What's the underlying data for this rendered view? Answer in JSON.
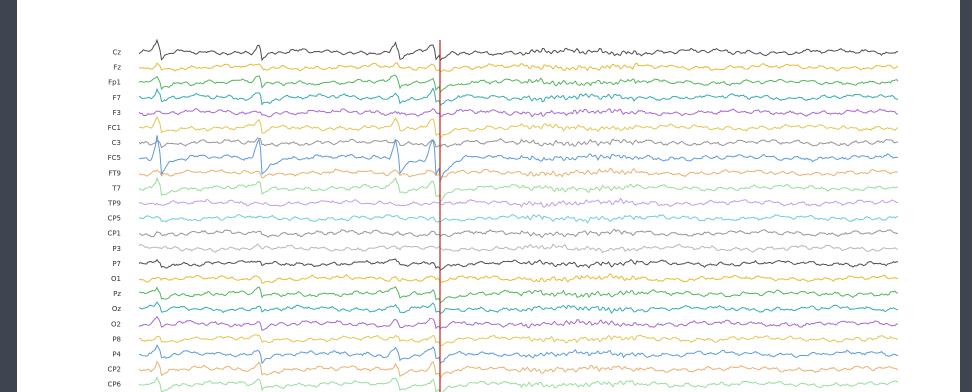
{
  "chart_data": {
    "type": "line",
    "title": "",
    "xlabel": "",
    "ylabel": "",
    "legend": "none",
    "grid": false,
    "event_marker": {
      "color": "#c0392b"
    },
    "series": [
      {
        "name": "Cz",
        "color": "#3a3a3a",
        "spikes": 1.0
      },
      {
        "name": "Fz",
        "color": "#e6b31e",
        "spikes": 0.3
      },
      {
        "name": "Fp1",
        "color": "#3fae4a",
        "spikes": 0.8
      },
      {
        "name": "F7",
        "color": "#1fa3a8",
        "spikes": 0.9
      },
      {
        "name": "F3",
        "color": "#9b59d0",
        "spikes": 0.3
      },
      {
        "name": "FC1",
        "color": "#e0c040",
        "spikes": 0.9
      },
      {
        "name": "C3",
        "color": "#8a8a8a",
        "spikes": 0.4
      },
      {
        "name": "FC5",
        "color": "#4a90d9",
        "spikes": 2.4
      },
      {
        "name": "FT9",
        "color": "#e8a860",
        "spikes": 0.3
      },
      {
        "name": "T7",
        "color": "#90d890",
        "spikes": 1.0
      },
      {
        "name": "TP9",
        "color": "#b896e8",
        "spikes": 0.2
      },
      {
        "name": "CP5",
        "color": "#5fc8d8",
        "spikes": 0.2
      },
      {
        "name": "CP1",
        "color": "#8a8a8a",
        "spikes": 0.2
      },
      {
        "name": "P3",
        "color": "#b0b0b0",
        "spikes": 0.2
      },
      {
        "name": "P7",
        "color": "#3a3a3a",
        "spikes": 0.4
      },
      {
        "name": "O1",
        "color": "#e6b31e",
        "spikes": 0.3
      },
      {
        "name": "Pz",
        "color": "#3fae4a",
        "spikes": 0.8
      },
      {
        "name": "Oz",
        "color": "#1fa3a8",
        "spikes": 0.6
      },
      {
        "name": "O2",
        "color": "#9b59d0",
        "spikes": 0.5
      },
      {
        "name": "P8",
        "color": "#e0c040",
        "spikes": 0.5
      },
      {
        "name": "P4",
        "color": "#4a90d9",
        "spikes": 0.9
      },
      {
        "name": "CP2",
        "color": "#e8a860",
        "spikes": 0.9
      },
      {
        "name": "CP6",
        "color": "#90d890",
        "spikes": 0.9
      }
    ]
  }
}
